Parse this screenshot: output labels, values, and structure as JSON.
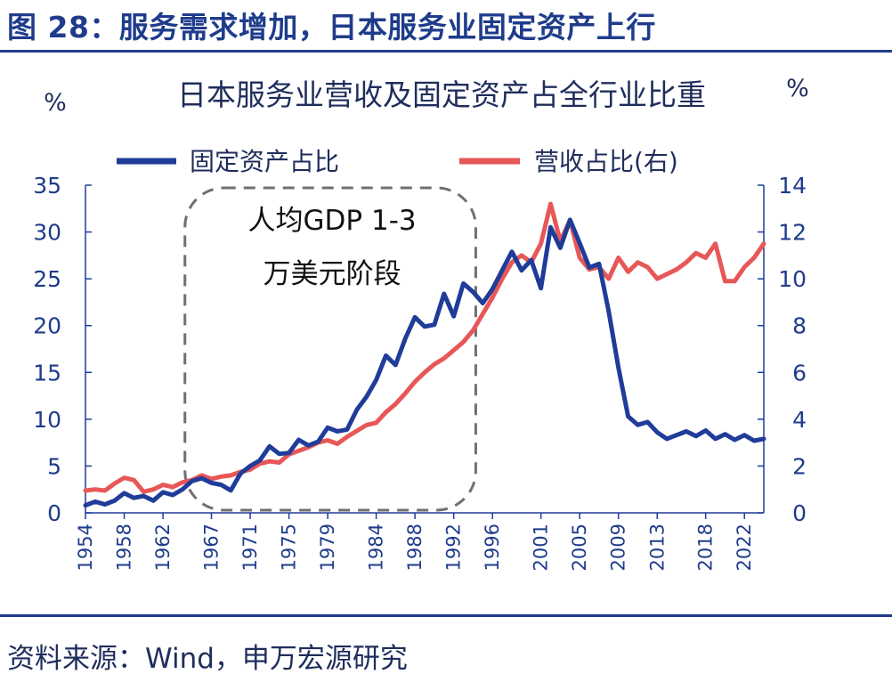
{
  "figure": {
    "title": "图 28：服务需求增加，日本服务业固定资产上行",
    "source": "资料来源：Wind，申万宏源研究"
  },
  "chart_data": {
    "type": "line",
    "title": "日本服务业营收及固定资产占全行业比重",
    "ylabel_left_unit": "%",
    "ylabel_right_unit": "%",
    "ylim_left": [
      0,
      35
    ],
    "ylim_right": [
      0,
      14
    ],
    "yticks_left": [
      "0",
      "5",
      "10",
      "15",
      "20",
      "25",
      "30",
      "35"
    ],
    "yticks_right": [
      "0",
      "2",
      "4",
      "6",
      "8",
      "10",
      "12",
      "14"
    ],
    "xlim": [
      1954,
      2024
    ],
    "xticks": [
      "1954",
      "1958",
      "1962",
      "1967",
      "1971",
      "1975",
      "1979",
      "1984",
      "1988",
      "1992",
      "1996",
      "2001",
      "2005",
      "2009",
      "2013",
      "2018",
      "2022"
    ],
    "legend_position": "top",
    "annotation": {
      "lines": [
        "人均GDP 1-3",
        "万美元阶段"
      ],
      "x_range": [
        1965,
        1994
      ]
    },
    "series": [
      {
        "name": "固定资产占比",
        "axis": "left",
        "color": "#1f3c99",
        "points": [
          [
            1954,
            0.8
          ],
          [
            1955,
            1.2
          ],
          [
            1956,
            0.9
          ],
          [
            1957,
            1.3
          ],
          [
            1958,
            2.1
          ],
          [
            1959,
            1.6
          ],
          [
            1960,
            1.8
          ],
          [
            1961,
            1.3
          ],
          [
            1962,
            2.2
          ],
          [
            1963,
            1.9
          ],
          [
            1964,
            2.5
          ],
          [
            1965,
            3.4
          ],
          [
            1966,
            3.7
          ],
          [
            1967,
            3.2
          ],
          [
            1968,
            3.0
          ],
          [
            1969,
            2.4
          ],
          [
            1970,
            4.2
          ],
          [
            1971,
            5.0
          ],
          [
            1972,
            5.6
          ],
          [
            1973,
            7.1
          ],
          [
            1974,
            6.3
          ],
          [
            1975,
            6.4
          ],
          [
            1976,
            7.8
          ],
          [
            1977,
            7.2
          ],
          [
            1978,
            7.6
          ],
          [
            1979,
            9.1
          ],
          [
            1980,
            8.7
          ],
          [
            1981,
            8.9
          ],
          [
            1982,
            11.0
          ],
          [
            1983,
            12.4
          ],
          [
            1984,
            14.2
          ],
          [
            1985,
            16.8
          ],
          [
            1986,
            15.8
          ],
          [
            1987,
            18.6
          ],
          [
            1988,
            20.9
          ],
          [
            1989,
            19.9
          ],
          [
            1990,
            20.1
          ],
          [
            1991,
            23.4
          ],
          [
            1992,
            21.0
          ],
          [
            1993,
            24.5
          ],
          [
            1994,
            23.6
          ],
          [
            1995,
            22.4
          ],
          [
            1996,
            23.9
          ],
          [
            1997,
            25.9
          ],
          [
            1998,
            27.9
          ],
          [
            1999,
            25.9
          ],
          [
            2000,
            27.0
          ],
          [
            2001,
            24.0
          ],
          [
            2002,
            30.5
          ],
          [
            2003,
            28.3
          ],
          [
            2004,
            31.3
          ],
          [
            2005,
            28.8
          ],
          [
            2006,
            26.2
          ],
          [
            2007,
            26.6
          ],
          [
            2008,
            21.5
          ],
          [
            2009,
            15.5
          ],
          [
            2010,
            10.3
          ],
          [
            2011,
            9.4
          ],
          [
            2012,
            9.7
          ],
          [
            2013,
            8.6
          ],
          [
            2014,
            7.9
          ],
          [
            2015,
            8.3
          ],
          [
            2016,
            8.7
          ],
          [
            2017,
            8.2
          ],
          [
            2018,
            8.8
          ],
          [
            2019,
            7.9
          ],
          [
            2020,
            8.4
          ],
          [
            2021,
            7.8
          ],
          [
            2022,
            8.3
          ],
          [
            2023,
            7.7
          ],
          [
            2024,
            7.9
          ]
        ]
      },
      {
        "name": "营收占比(右)",
        "axis": "right",
        "color": "#e85757",
        "points": [
          [
            1954,
            0.95
          ],
          [
            1955,
            1.0
          ],
          [
            1956,
            0.95
          ],
          [
            1957,
            1.25
          ],
          [
            1958,
            1.5
          ],
          [
            1959,
            1.4
          ],
          [
            1960,
            0.9
          ],
          [
            1961,
            1.0
          ],
          [
            1962,
            1.2
          ],
          [
            1963,
            1.1
          ],
          [
            1964,
            1.3
          ],
          [
            1965,
            1.4
          ],
          [
            1966,
            1.6
          ],
          [
            1967,
            1.45
          ],
          [
            1968,
            1.55
          ],
          [
            1969,
            1.6
          ],
          [
            1970,
            1.75
          ],
          [
            1971,
            1.85
          ],
          [
            1972,
            2.1
          ],
          [
            1973,
            2.2
          ],
          [
            1974,
            2.15
          ],
          [
            1975,
            2.5
          ],
          [
            1976,
            2.65
          ],
          [
            1977,
            2.8
          ],
          [
            1978,
            3.0
          ],
          [
            1979,
            3.1
          ],
          [
            1980,
            2.95
          ],
          [
            1981,
            3.25
          ],
          [
            1982,
            3.5
          ],
          [
            1983,
            3.75
          ],
          [
            1984,
            3.85
          ],
          [
            1985,
            4.3
          ],
          [
            1986,
            4.65
          ],
          [
            1987,
            5.1
          ],
          [
            1988,
            5.6
          ],
          [
            1989,
            6.0
          ],
          [
            1990,
            6.35
          ],
          [
            1991,
            6.6
          ],
          [
            1992,
            6.95
          ],
          [
            1993,
            7.3
          ],
          [
            1994,
            7.8
          ],
          [
            1995,
            8.5
          ],
          [
            1996,
            9.2
          ],
          [
            1997,
            10.0
          ],
          [
            1998,
            10.7
          ],
          [
            1999,
            11.0
          ],
          [
            2000,
            10.7
          ],
          [
            2001,
            11.5
          ],
          [
            2002,
            13.2
          ],
          [
            2003,
            11.6
          ],
          [
            2004,
            12.5
          ],
          [
            2005,
            10.9
          ],
          [
            2006,
            10.4
          ],
          [
            2007,
            10.5
          ],
          [
            2008,
            10.0
          ],
          [
            2009,
            10.9
          ],
          [
            2010,
            10.3
          ],
          [
            2011,
            10.7
          ],
          [
            2012,
            10.5
          ],
          [
            2013,
            10.0
          ],
          [
            2014,
            10.2
          ],
          [
            2015,
            10.4
          ],
          [
            2016,
            10.7
          ],
          [
            2017,
            11.1
          ],
          [
            2018,
            10.9
          ],
          [
            2019,
            11.5
          ],
          [
            2020,
            9.9
          ],
          [
            2021,
            9.9
          ],
          [
            2022,
            10.5
          ],
          [
            2023,
            10.9
          ],
          [
            2024,
            11.5
          ]
        ]
      }
    ]
  }
}
